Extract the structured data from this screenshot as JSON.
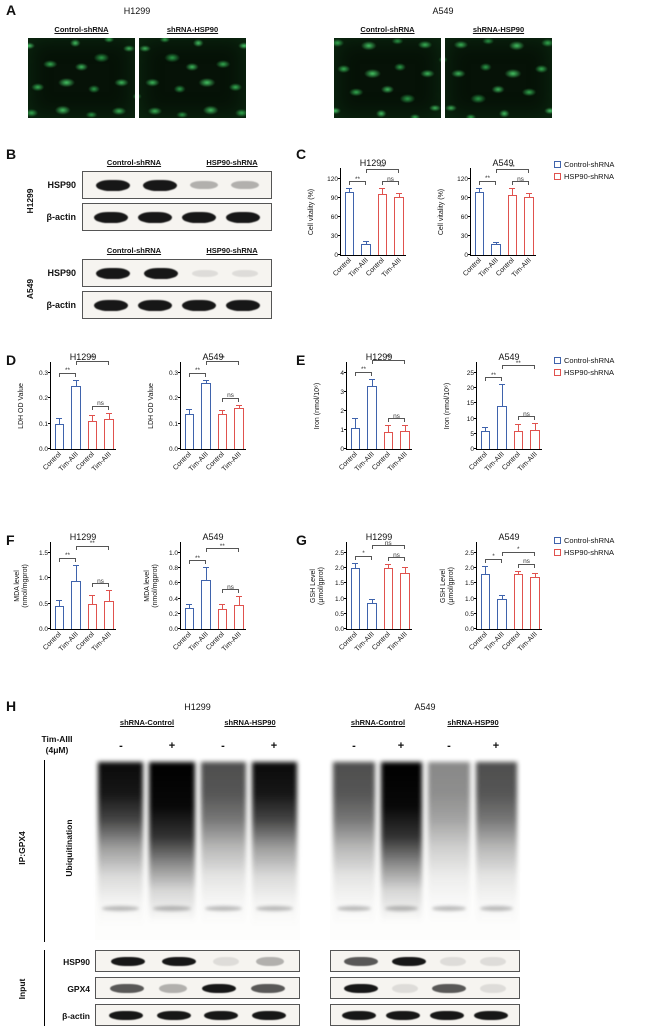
{
  "colors": {
    "blue": "#3f63ac",
    "red": "#e0524e"
  },
  "legend": {
    "items": [
      {
        "key": "blue",
        "label": "Control-shRNA"
      },
      {
        "key": "red",
        "label": "HSP90-shRNA"
      }
    ]
  },
  "panels": {
    "A": {
      "label": "A",
      "groups": [
        {
          "cell_line": "H1299",
          "columns": [
            "Control-shRNA",
            "shRNA-HSP90"
          ]
        },
        {
          "cell_line": "A549",
          "columns": [
            "Control-shRNA",
            "shRNA-HSP90"
          ]
        }
      ]
    },
    "B": {
      "label": "B",
      "groups": [
        {
          "cell_line": "H1299",
          "columns": [
            "Control-shRNA",
            "HSP90-shRNA"
          ],
          "rows": [
            {
              "label": "HSP90",
              "bands": [
                "strong",
                "strong",
                "faint",
                "faint"
              ]
            },
            {
              "label": "β-actin",
              "bands": [
                "strong",
                "strong",
                "strong",
                "strong"
              ]
            }
          ]
        },
        {
          "cell_line": "A549",
          "columns": [
            "Control-shRNA",
            "HSP90-shRNA"
          ],
          "rows": [
            {
              "label": "HSP90",
              "bands": [
                "strong",
                "strong",
                "trace",
                "trace"
              ]
            },
            {
              "label": "β-actin",
              "bands": [
                "strong",
                "strong",
                "strong",
                "strong"
              ]
            }
          ]
        }
      ]
    },
    "C": {
      "label": "C"
    },
    "D": {
      "label": "D"
    },
    "E": {
      "label": "E"
    },
    "F": {
      "label": "F"
    },
    "G": {
      "label": "G"
    },
    "H": {
      "label": "H",
      "groups": [
        {
          "cell_line": "H1299",
          "subcolumns": [
            "shRNA-Control",
            "shRNA-HSP90"
          ],
          "smear_lanes": [
            "heavy",
            "vheavy",
            "med",
            "heavy"
          ]
        },
        {
          "cell_line": "A549",
          "subcolumns": [
            "shRNA-Control",
            "shRNA-HSP90"
          ],
          "smear_lanes": [
            "med",
            "vheavy",
            "light",
            "med"
          ]
        }
      ],
      "treatment_label": "Tim-AIII\n(4μM)",
      "signs": [
        "-",
        "+",
        "-",
        "+"
      ],
      "ip_label": "IP:GPX4",
      "smear_label": "Ubiquitination",
      "input_label": "Input",
      "input_rows": [
        {
          "label": "HSP90",
          "bands_h1299": [
            "strong",
            "strong",
            "trace",
            "faint"
          ],
          "bands_a549": [
            "medium",
            "strong",
            "trace",
            "trace"
          ]
        },
        {
          "label": "GPX4",
          "bands_h1299": [
            "medium",
            "faint",
            "strong",
            "medium"
          ],
          "bands_a549": [
            "strong",
            "trace",
            "medium",
            "trace"
          ]
        },
        {
          "label": "β-actin",
          "bands_h1299": [
            "strong",
            "strong",
            "strong",
            "strong"
          ],
          "bands_a549": [
            "strong",
            "strong",
            "strong",
            "strong"
          ]
        }
      ]
    }
  },
  "chart_data": [
    {
      "panel": "C",
      "type": "bar",
      "title": "H1299",
      "ylabel": "Cell vitality (%)",
      "ymax": 120,
      "yticks": [
        "0",
        "30",
        "60",
        "90",
        "120"
      ],
      "categories": [
        "Control",
        "Tim-AIII",
        "Control",
        "Tim-AIII"
      ],
      "colors": [
        "blue",
        "blue",
        "red",
        "red"
      ],
      "values": [
        100,
        18,
        96,
        91
      ],
      "errors": [
        4,
        2,
        8,
        6
      ],
      "sig": [
        {
          "a": 0,
          "b": 1,
          "t": "**",
          "lv": 1
        },
        {
          "a": 1,
          "b": 3,
          "t": "**",
          "lv": 2
        },
        {
          "a": 2,
          "b": 3,
          "t": "ns",
          "lv": 1
        }
      ]
    },
    {
      "panel": "C",
      "type": "bar",
      "title": "A549",
      "ylabel": "Cell vitality (%)",
      "ymax": 120,
      "yticks": [
        "0",
        "30",
        "60",
        "90",
        "120"
      ],
      "categories": [
        "Control",
        "Tim-AIII",
        "Control",
        "Tim-AIII"
      ],
      "colors": [
        "blue",
        "blue",
        "red",
        "red"
      ],
      "values": [
        100,
        17,
        94,
        92
      ],
      "errors": [
        5,
        2,
        10,
        5
      ],
      "sig": [
        {
          "a": 0,
          "b": 1,
          "t": "**",
          "lv": 1
        },
        {
          "a": 1,
          "b": 3,
          "t": "**",
          "lv": 2
        },
        {
          "a": 2,
          "b": 3,
          "t": "ns",
          "lv": 1
        }
      ]
    },
    {
      "panel": "D",
      "type": "bar",
      "title": "H1299",
      "ylabel": "LDH OD Value",
      "ymax": 0.3,
      "yticks": [
        "0.0",
        "0.1",
        "0.2",
        "0.3"
      ],
      "categories": [
        "Control",
        "Tim-AIII",
        "Control",
        "Tim-AIII"
      ],
      "colors": [
        "blue",
        "blue",
        "red",
        "red"
      ],
      "values": [
        0.1,
        0.25,
        0.11,
        0.12
      ],
      "errors": [
        0.02,
        0.02,
        0.02,
        0.02
      ],
      "sig": [
        {
          "a": 0,
          "b": 1,
          "t": "**",
          "lv": 1
        },
        {
          "a": 1,
          "b": 3,
          "t": "**",
          "lv": 2
        },
        {
          "a": 2,
          "b": 3,
          "t": "ns",
          "lv": 1
        }
      ]
    },
    {
      "panel": "D",
      "type": "bar",
      "title": "A549",
      "ylabel": "LDH OD Value",
      "ymax": 0.3,
      "yticks": [
        "0.0",
        "0.1",
        "0.2",
        "0.3"
      ],
      "categories": [
        "Control",
        "Tim-AIII",
        "Control",
        "Tim-AIII"
      ],
      "colors": [
        "blue",
        "blue",
        "red",
        "red"
      ],
      "values": [
        0.14,
        0.26,
        0.14,
        0.16
      ],
      "errors": [
        0.015,
        0.01,
        0.01,
        0.01
      ],
      "sig": [
        {
          "a": 0,
          "b": 1,
          "t": "**",
          "lv": 1
        },
        {
          "a": 1,
          "b": 3,
          "t": "**",
          "lv": 2
        },
        {
          "a": 2,
          "b": 3,
          "t": "ns",
          "lv": 1
        }
      ]
    },
    {
      "panel": "E",
      "type": "bar",
      "title": "H1299",
      "ylabel": "Iron (nmol/10⁶)",
      "ymax": 4,
      "yticks": [
        "0",
        "1",
        "2",
        "3",
        "4"
      ],
      "categories": [
        "Control",
        "Tim-AIII",
        "Control",
        "Tim-AIII"
      ],
      "colors": [
        "blue",
        "blue",
        "red",
        "red"
      ],
      "values": [
        1.1,
        3.3,
        0.9,
        0.95
      ],
      "errors": [
        0.5,
        0.35,
        0.3,
        0.25
      ],
      "sig": [
        {
          "a": 0,
          "b": 1,
          "t": "**",
          "lv": 1
        },
        {
          "a": 1,
          "b": 3,
          "t": "**",
          "lv": 2
        },
        {
          "a": 2,
          "b": 3,
          "t": "ns",
          "lv": 1
        }
      ]
    },
    {
      "panel": "E",
      "type": "bar",
      "title": "A549",
      "ylabel": "Iron (nmol/10⁶)",
      "ymax": 25,
      "yticks": [
        "0",
        "5",
        "10",
        "15",
        "20",
        "25"
      ],
      "categories": [
        "Control",
        "Tim-AIII",
        "Control",
        "Tim-AIII"
      ],
      "colors": [
        "blue",
        "blue",
        "red",
        "red"
      ],
      "values": [
        6,
        14,
        5.8,
        6.2
      ],
      "errors": [
        1,
        7,
        2,
        2
      ],
      "sig": [
        {
          "a": 0,
          "b": 1,
          "t": "**",
          "lv": 1
        },
        {
          "a": 1,
          "b": 3,
          "t": "**",
          "lv": 2
        },
        {
          "a": 2,
          "b": 3,
          "t": "ns",
          "lv": 1
        }
      ]
    },
    {
      "panel": "F",
      "type": "bar",
      "title": "H1299",
      "ylabel": "MDA level\n(nmol/mgprot)",
      "ymax": 1.5,
      "yticks": [
        "0.0",
        "0.5",
        "1.0",
        "1.5"
      ],
      "categories": [
        "Control",
        "Tim-AIII",
        "Control",
        "Tim-AIII"
      ],
      "colors": [
        "blue",
        "blue",
        "red",
        "red"
      ],
      "values": [
        0.45,
        0.95,
        0.5,
        0.55
      ],
      "errors": [
        0.1,
        0.3,
        0.15,
        0.2
      ],
      "sig": [
        {
          "a": 0,
          "b": 1,
          "t": "**",
          "lv": 1
        },
        {
          "a": 1,
          "b": 3,
          "t": "**",
          "lv": 2
        },
        {
          "a": 2,
          "b": 3,
          "t": "ns",
          "lv": 1
        }
      ]
    },
    {
      "panel": "F",
      "type": "bar",
      "title": "A549",
      "ylabel": "MDA level\n(nmol/mgprot)",
      "ymax": 1.0,
      "yticks": [
        "0.0",
        "0.2",
        "0.4",
        "0.6",
        "0.8",
        "1.0"
      ],
      "categories": [
        "Control",
        "Tim-AIII",
        "Control",
        "Tim-AIII"
      ],
      "colors": [
        "blue",
        "blue",
        "red",
        "red"
      ],
      "values": [
        0.28,
        0.65,
        0.26,
        0.32
      ],
      "errors": [
        0.04,
        0.15,
        0.06,
        0.1
      ],
      "sig": [
        {
          "a": 0,
          "b": 1,
          "t": "**",
          "lv": 1
        },
        {
          "a": 1,
          "b": 3,
          "t": "**",
          "lv": 2
        },
        {
          "a": 2,
          "b": 3,
          "t": "ns",
          "lv": 1
        }
      ]
    },
    {
      "panel": "G",
      "type": "bar",
      "title": "H1299",
      "ylabel": "GSH Level\n(μmol/gprot)",
      "ymax": 2.5,
      "yticks": [
        "0.0",
        "0.5",
        "1.0",
        "1.5",
        "2.0",
        "2.5"
      ],
      "categories": [
        "Control",
        "Tim-AIII",
        "Control",
        "Tim-AIII"
      ],
      "colors": [
        "blue",
        "blue",
        "red",
        "red"
      ],
      "values": [
        2.0,
        0.85,
        2.0,
        1.85
      ],
      "errors": [
        0.15,
        0.1,
        0.1,
        0.15
      ],
      "sig": [
        {
          "a": 0,
          "b": 1,
          "t": "*",
          "lv": 1
        },
        {
          "a": 1,
          "b": 3,
          "t": "ns",
          "lv": 2
        },
        {
          "a": 2,
          "b": 3,
          "t": "ns",
          "lv": 1
        }
      ]
    },
    {
      "panel": "G",
      "type": "bar",
      "title": "A549",
      "ylabel": "GSH Level\n(μmol/gprot)",
      "ymax": 2.5,
      "yticks": [
        "0.0",
        "0.5",
        "1.0",
        "1.5",
        "2.0",
        "2.5"
      ],
      "categories": [
        "Control",
        "Tim-AIII",
        "Control",
        "Tim-AIII"
      ],
      "colors": [
        "blue",
        "blue",
        "red",
        "red"
      ],
      "values": [
        1.8,
        1.0,
        1.8,
        1.7
      ],
      "errors": [
        0.25,
        0.1,
        0.08,
        0.1
      ],
      "sig": [
        {
          "a": 0,
          "b": 1,
          "t": "*",
          "lv": 1
        },
        {
          "a": 1,
          "b": 3,
          "t": "*",
          "lv": 2
        },
        {
          "a": 2,
          "b": 3,
          "t": "ns",
          "lv": 1
        }
      ]
    }
  ]
}
